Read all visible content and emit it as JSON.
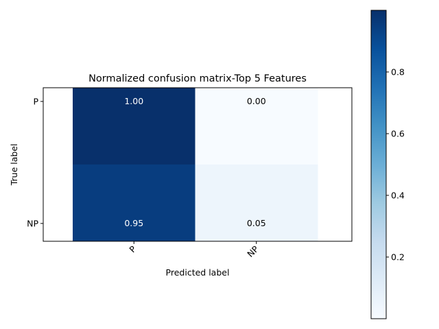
{
  "chart_data": [
    {
      "type": "heatmap",
      "title": "Normalized confusion matrix-Top 5 Features",
      "xlabel": "Predicted label",
      "ylabel": "True label",
      "x_categories": [
        "P",
        "NP"
      ],
      "y_categories": [
        "P",
        "NP"
      ],
      "values": [
        [
          1.0,
          0.0
        ],
        [
          0.95,
          0.05
        ]
      ],
      "cell_labels": [
        [
          "1.00",
          "0.00"
        ],
        [
          "0.95",
          "0.05"
        ]
      ],
      "colormap": "Blues",
      "colorbar": {
        "min": 0.0,
        "max": 1.0,
        "ticks": [
          0.2,
          0.4,
          0.6,
          0.8
        ],
        "tick_labels": [
          "0.2",
          "0.4",
          "0.6",
          "0.8"
        ]
      }
    }
  ]
}
